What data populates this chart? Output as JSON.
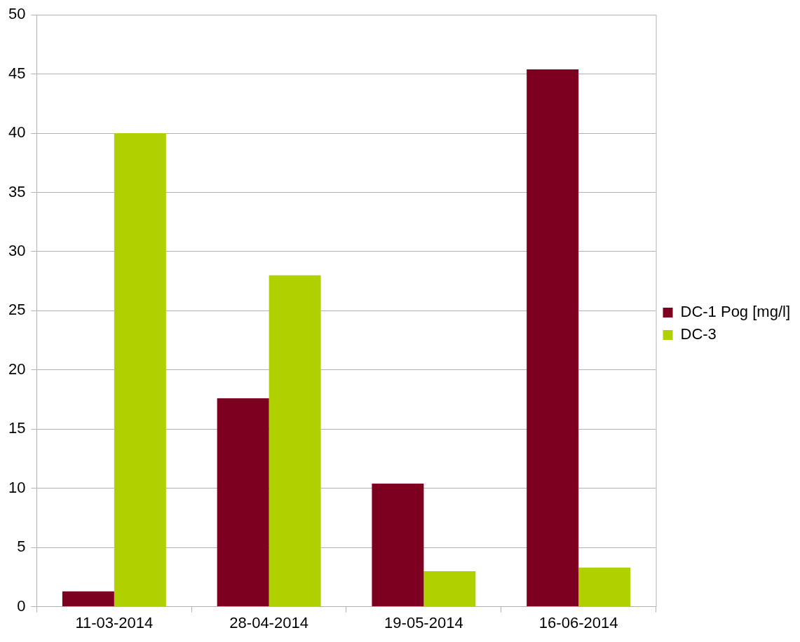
{
  "chart_data": {
    "type": "bar",
    "categories": [
      "11-03-2014",
      "28-04-2014",
      "19-05-2014",
      "16-06-2014"
    ],
    "series": [
      {
        "name": "DC-1 Pog [mg/l]",
        "color": "#7e0021",
        "values": [
          1.3,
          17.6,
          10.4,
          45.4
        ]
      },
      {
        "name": "DC-3",
        "color": "#b0d000",
        "values": [
          40,
          28,
          3.0,
          3.3
        ]
      }
    ],
    "ylim": [
      0,
      50
    ],
    "yticks": [
      0,
      5,
      10,
      15,
      20,
      25,
      30,
      35,
      40,
      45,
      50
    ],
    "grid": "y",
    "legend": "right"
  }
}
